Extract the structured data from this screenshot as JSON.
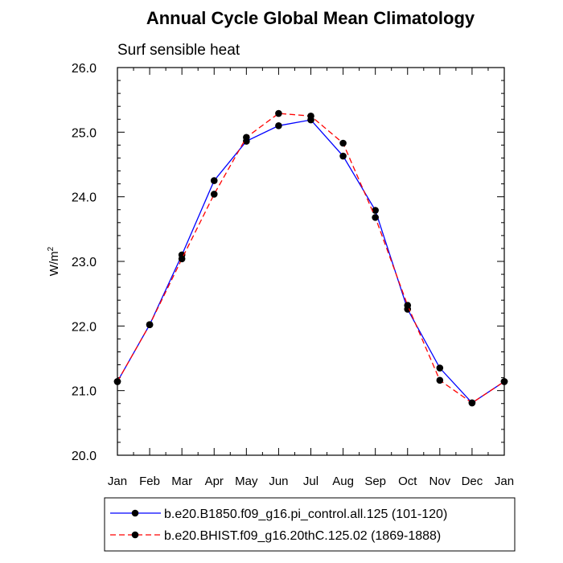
{
  "chart_data": {
    "type": "line",
    "title": "Annual Cycle Global Mean Climatology",
    "subtitle": "Surf sensible heat",
    "ylabel_base": "W/m",
    "ylabel_sup": "2",
    "xlabel": "",
    "categories": [
      "Jan",
      "Feb",
      "Mar",
      "Apr",
      "May",
      "Jun",
      "Jul",
      "Aug",
      "Sep",
      "Oct",
      "Nov",
      "Dec",
      "Jan"
    ],
    "yticks": [
      "20.0",
      "21.0",
      "22.0",
      "23.0",
      "24.0",
      "25.0",
      "26.0"
    ],
    "ylim": [
      20.0,
      26.0
    ],
    "series": [
      {
        "name": "b.e20.B1850.f09_g16.pi_control.all.125 (101-120)",
        "color": "#0000ff",
        "dash": "solid",
        "values": [
          21.14,
          22.02,
          23.1,
          24.25,
          24.86,
          25.1,
          25.19,
          24.63,
          23.79,
          22.26,
          21.35,
          20.81,
          21.14
        ]
      },
      {
        "name": "b.e20.BHIST.f09_g16.20thC.125.02 (1869-1888)",
        "color": "#ff0000",
        "dash": "dashed",
        "values": [
          21.14,
          22.02,
          23.04,
          24.04,
          24.92,
          25.29,
          25.25,
          24.83,
          23.68,
          22.32,
          21.16,
          20.81,
          21.14
        ]
      }
    ],
    "legend_position": "bottom",
    "grid": false
  }
}
